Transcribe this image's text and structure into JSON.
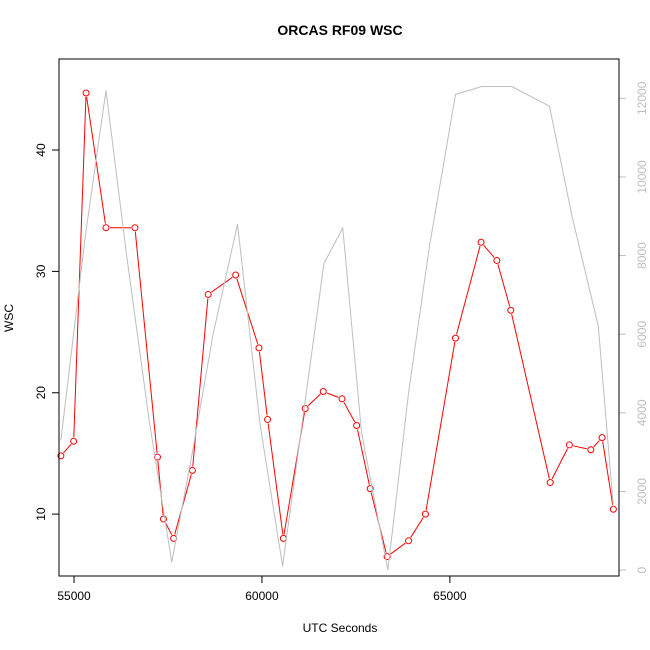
{
  "chart_data": {
    "type": "line",
    "title": "ORCAS RF09 WSC",
    "xlabel": "UTC Seconds",
    "ylabel": "WSC",
    "xlim": [
      54600,
      69500
    ],
    "ylim": [
      4.9,
      47.5
    ],
    "y2lim": [
      -150,
      13000
    ],
    "x_ticks": [
      55000,
      60000,
      65000
    ],
    "y_ticks": [
      10,
      20,
      30,
      40
    ],
    "y2_ticks": [
      0,
      2000,
      4000,
      6000,
      8000,
      10000,
      12000
    ],
    "colors": {
      "wsc": "#ff0000",
      "altitude": "#bebebe",
      "axis": "#000000",
      "secondary_axis": "#bebebe"
    },
    "series": [
      {
        "axis": "left",
        "color": "#ff0000",
        "marker": "open-circle",
        "x": [
          54650,
          54990,
          55320,
          55850,
          56620,
          57220,
          57380,
          57650,
          58150,
          58570,
          59300,
          59920,
          60150,
          60570,
          61150,
          61630,
          62130,
          62520,
          62880,
          63330,
          63900,
          64350,
          65150,
          65830,
          66250,
          66620,
          67670,
          68180,
          68750,
          69050,
          69350
        ],
        "values": [
          14.8,
          16.0,
          44.7,
          33.6,
          33.6,
          14.7,
          9.6,
          8.0,
          13.6,
          28.1,
          29.7,
          23.7,
          17.8,
          8.0,
          18.7,
          20.1,
          19.5,
          17.3,
          12.1,
          6.5,
          7.8,
          10.0,
          24.5,
          32.4,
          30.9,
          26.8,
          12.6,
          15.7,
          15.3,
          16.3,
          10.4
        ]
      },
      {
        "axis": "right",
        "color": "#bebebe",
        "marker": "none",
        "x": [
          54650,
          55300,
          55850,
          56400,
          57000,
          57600,
          58150,
          58700,
          59350,
          59950,
          60550,
          61650,
          62150,
          62650,
          63350,
          63900,
          64450,
          65150,
          65850,
          66650,
          67650,
          68250,
          68950,
          69350
        ],
        "values": [
          3300,
          8500,
          12200,
          8000,
          3800,
          200,
          3000,
          6000,
          8800,
          3700,
          100,
          7800,
          8700,
          3500,
          0,
          4500,
          8200,
          12100,
          12300,
          12300,
          11800,
          9000,
          6200,
          1600
        ]
      }
    ]
  }
}
